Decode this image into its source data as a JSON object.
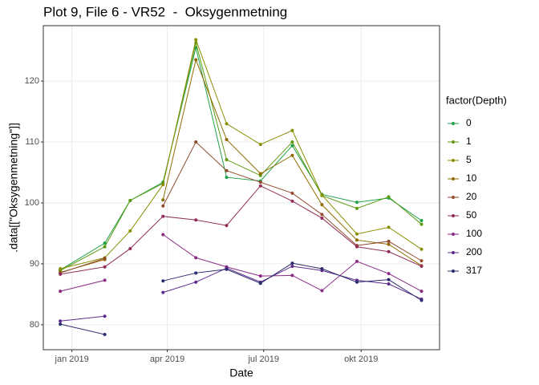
{
  "chart_data": {
    "type": "line",
    "title": "Plot 9, File 6 - VR52  -  Oksygenmetning",
    "x_label": "Date",
    "y_label": ".data[[\"Oksygenmetning\"]]",
    "legend_title": "factor(Depth)",
    "x": [
      -11,
      31,
      55,
      86,
      117,
      146,
      178,
      208,
      236,
      269,
      299,
      330
    ],
    "xlim": [
      -27,
      347
    ],
    "xticks": [
      {
        "value": 0,
        "label": "jan 2019"
      },
      {
        "value": 90,
        "label": "apr 2019"
      },
      {
        "value": 181,
        "label": "jul 2019"
      },
      {
        "value": 273,
        "label": "okt 2019"
      }
    ],
    "ylim": [
      75.9,
      129.1
    ],
    "yticks": [
      80,
      90,
      100,
      110,
      120
    ],
    "grid": true,
    "legend": "right",
    "series": [
      {
        "name": "0",
        "color": "#1fa14a",
        "values": [
          89.0,
          93.4,
          100.4,
          103.4,
          125.5,
          104.2,
          103.6,
          109.4,
          101.4,
          100.1,
          100.8,
          97.1
        ]
      },
      {
        "name": "1",
        "color": "#5d9a10",
        "values": [
          88.9,
          92.8,
          100.4,
          103.2,
          126.3,
          107.1,
          104.5,
          110.0,
          101.2,
          99.1,
          101.0,
          96.5
        ]
      },
      {
        "name": "5",
        "color": "#8a8f00",
        "values": [
          89.2,
          91.0,
          95.4,
          103.0,
          126.8,
          113.0,
          109.6,
          111.9,
          101.3,
          94.9,
          96.0,
          92.4
        ]
      },
      {
        "name": "10",
        "color": "#8f6b00",
        "values": [
          88.6,
          90.7,
          null,
          100.5,
          123.5,
          110.4,
          104.8,
          107.8,
          99.7,
          93.9,
          93.2,
          89.7
        ]
      },
      {
        "name": "20",
        "color": "#914a2e",
        "values": [
          88.5,
          90.9,
          null,
          99.5,
          110.0,
          105.3,
          103.4,
          101.6,
          98.1,
          93.0,
          93.7,
          90.5
        ]
      },
      {
        "name": "50",
        "color": "#912d58",
        "values": [
          88.3,
          89.5,
          92.5,
          97.8,
          97.2,
          96.3,
          102.8,
          100.3,
          97.5,
          92.8,
          92.0,
          89.6
        ]
      },
      {
        "name": "100",
        "color": "#8a2a84",
        "values": [
          85.5,
          87.3,
          null,
          94.8,
          91.0,
          89.5,
          88.0,
          88.1,
          85.6,
          90.4,
          88.4,
          85.5
        ]
      },
      {
        "name": "200",
        "color": "#5f2a8c",
        "values": [
          80.6,
          81.4,
          null,
          85.3,
          87.0,
          89.3,
          87.0,
          89.6,
          88.9,
          87.3,
          86.7,
          84.2
        ]
      },
      {
        "name": "317",
        "color": "#2b2d6e",
        "values": [
          80.1,
          78.4,
          null,
          87.2,
          88.5,
          89.1,
          86.8,
          90.1,
          89.2,
          87.0,
          87.4,
          84.0
        ]
      }
    ]
  }
}
